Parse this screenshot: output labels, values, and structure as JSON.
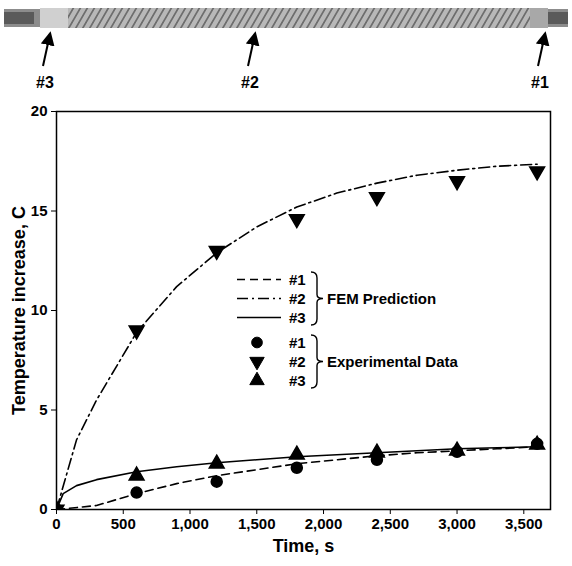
{
  "chart_data": {
    "type": "line",
    "x_label": "Time, s",
    "y_label": "Temperature increase, C",
    "annotations": [
      "#3",
      "#2",
      "#1"
    ],
    "xlim": [
      0,
      3700
    ],
    "xticks": [
      0,
      500,
      1000,
      1500,
      2000,
      2500,
      3000,
      3500
    ],
    "ylim": [
      0,
      20
    ],
    "yticks": [
      0,
      5,
      10,
      15,
      20
    ],
    "legend": "center",
    "series": [
      {
        "name": "#1",
        "group": "FEM Prediction",
        "type": "line",
        "line_style": "dashed",
        "color": "#000000",
        "x": [
          0,
          300,
          600,
          900,
          1200,
          1500,
          1800,
          2100,
          2400,
          2700,
          3000,
          3300,
          3600
        ],
        "values": [
          0,
          0.2,
          0.8,
          1.3,
          1.7,
          2.0,
          2.3,
          2.5,
          2.7,
          2.85,
          2.95,
          3.05,
          3.15
        ]
      },
      {
        "name": "#2",
        "group": "FEM Prediction",
        "type": "line",
        "line_style": "dashdot",
        "color": "#000000",
        "x": [
          0,
          150,
          300,
          600,
          900,
          1200,
          1500,
          1800,
          2100,
          2400,
          2700,
          3000,
          3300,
          3600
        ],
        "values": [
          0,
          3.5,
          5.5,
          8.9,
          11.2,
          12.9,
          14.2,
          15.2,
          15.9,
          16.4,
          16.8,
          17.05,
          17.25,
          17.35
        ]
      },
      {
        "name": "#3",
        "group": "FEM Prediction",
        "type": "line",
        "line_style": "solid",
        "color": "#000000",
        "x": [
          0,
          50,
          150,
          300,
          600,
          900,
          1200,
          1500,
          1800,
          2100,
          2400,
          2700,
          3000,
          3300,
          3600
        ],
        "values": [
          0,
          0.8,
          1.2,
          1.5,
          1.9,
          2.15,
          2.35,
          2.5,
          2.65,
          2.75,
          2.85,
          2.95,
          3.05,
          3.1,
          3.15
        ]
      },
      {
        "name": "#1",
        "group": "Experimental Data",
        "type": "scatter",
        "marker": "circle",
        "color": "#000000",
        "x": [
          0,
          600,
          1200,
          1800,
          2400,
          3000,
          3600
        ],
        "values": [
          0,
          0.85,
          1.4,
          2.1,
          2.5,
          2.9,
          3.3
        ]
      },
      {
        "name": "#2",
        "group": "Experimental Data",
        "type": "scatter",
        "marker": "triangle-down",
        "color": "#000000",
        "x": [
          0,
          600,
          1200,
          1800,
          2400,
          3000,
          3600
        ],
        "values": [
          0,
          9.0,
          13.0,
          14.6,
          15.7,
          16.5,
          17.0
        ]
      },
      {
        "name": "#3",
        "group": "Experimental Data",
        "type": "scatter",
        "marker": "triangle",
        "color": "#000000",
        "x": [
          0,
          600,
          1200,
          1800,
          2400,
          3000,
          3600
        ],
        "values": [
          0,
          1.7,
          2.3,
          2.75,
          2.85,
          2.95,
          3.25
        ]
      }
    ]
  }
}
